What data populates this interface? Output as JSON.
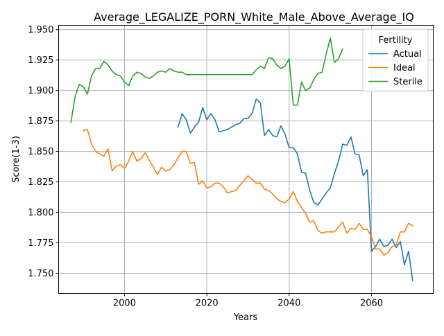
{
  "chart_data": {
    "type": "line",
    "title": "Average_LEGALIZE_PORN_White_Male_Above_Average_IQ",
    "xlabel": "Years",
    "ylabel": "Score(1-3)",
    "xlim": [
      1984,
      2075
    ],
    "ylim": [
      1.7335,
      1.9535
    ],
    "xticks": [
      2000,
      2020,
      2040,
      2060
    ],
    "yticks": [
      1.75,
      1.775,
      1.8,
      1.825,
      1.85,
      1.875,
      1.9,
      1.925,
      1.95
    ],
    "grid": true,
    "legend": {
      "title": "Fertility",
      "placement": "top-right"
    },
    "series": [
      {
        "name": "Actual",
        "color": "#1f77b4",
        "x": [
          2013,
          2014,
          2015,
          2016,
          2017,
          2018,
          2019,
          2020,
          2021,
          2022,
          2023,
          2024,
          2025,
          2026,
          2027,
          2028,
          2029,
          2030,
          2031,
          2032,
          2033,
          2034,
          2035,
          2036,
          2037,
          2038,
          2039,
          2040,
          2041,
          2042,
          2043,
          2044,
          2045,
          2046,
          2047,
          2048,
          2049,
          2050,
          2051,
          2052,
          2053,
          2054,
          2055,
          2056,
          2057,
          2058,
          2059,
          2060,
          2061,
          2062,
          2063,
          2064,
          2065,
          2066,
          2067,
          2068,
          2069,
          2070
        ],
        "values": [
          1.87,
          1.881,
          1.876,
          1.865,
          1.87,
          1.874,
          1.886,
          1.876,
          1.881,
          1.876,
          1.866,
          1.867,
          1.868,
          1.87,
          1.872,
          1.873,
          1.877,
          1.877,
          1.881,
          1.893,
          1.89,
          1.863,
          1.868,
          1.863,
          1.862,
          1.871,
          1.864,
          1.853,
          1.853,
          1.848,
          1.833,
          1.832,
          1.818,
          1.808,
          1.806,
          1.811,
          1.816,
          1.82,
          1.832,
          1.842,
          1.856,
          1.855,
          1.862,
          1.848,
          1.847,
          1.83,
          1.835,
          1.768,
          1.772,
          1.778,
          1.772,
          1.773,
          1.778,
          1.771,
          1.776,
          1.757,
          1.768,
          1.744
        ]
      },
      {
        "name": "Ideal",
        "color": "#ff7f0e",
        "x": [
          1990,
          1991,
          1992,
          1993,
          1994,
          1995,
          1996,
          1997,
          1998,
          1999,
          2000,
          2001,
          2002,
          2003,
          2004,
          2005,
          2006,
          2007,
          2008,
          2009,
          2010,
          2011,
          2012,
          2013,
          2014,
          2015,
          2016,
          2017,
          2018,
          2019,
          2020,
          2021,
          2022,
          2023,
          2024,
          2025,
          2026,
          2027,
          2028,
          2029,
          2030,
          2031,
          2032,
          2033,
          2034,
          2035,
          2036,
          2037,
          2038,
          2039,
          2040,
          2041,
          2042,
          2043,
          2044,
          2045,
          2046,
          2047,
          2048,
          2049,
          2050,
          2051,
          2052,
          2053,
          2054,
          2055,
          2056,
          2057,
          2058,
          2059,
          2060,
          2061,
          2062,
          2063,
          2064,
          2065,
          2066,
          2067,
          2068,
          2069,
          2070
        ],
        "values": [
          1.867,
          1.868,
          1.856,
          1.85,
          1.848,
          1.846,
          1.852,
          1.834,
          1.838,
          1.839,
          1.836,
          1.842,
          1.85,
          1.842,
          1.844,
          1.849,
          1.843,
          1.837,
          1.831,
          1.837,
          1.834,
          1.835,
          1.839,
          1.845,
          1.85,
          1.85,
          1.84,
          1.841,
          1.823,
          1.826,
          1.82,
          1.821,
          1.824,
          1.824,
          1.821,
          1.816,
          1.817,
          1.818,
          1.822,
          1.826,
          1.83,
          1.827,
          1.824,
          1.824,
          1.819,
          1.818,
          1.815,
          1.811,
          1.809,
          1.808,
          1.811,
          1.817,
          1.809,
          1.804,
          1.799,
          1.792,
          1.793,
          1.785,
          1.783,
          1.784,
          1.784,
          1.784,
          1.788,
          1.792,
          1.783,
          1.787,
          1.786,
          1.791,
          1.786,
          1.786,
          1.78,
          1.77,
          1.77,
          1.765,
          1.767,
          1.772,
          1.773,
          1.784,
          1.784,
          1.791,
          1.789
        ]
      },
      {
        "name": "Sterile",
        "color": "#2ca02c",
        "x": [
          1987,
          1988,
          1989,
          1990,
          1991,
          1992,
          1993,
          1994,
          1995,
          1996,
          1997,
          1998,
          1999,
          2000,
          2001,
          2002,
          2003,
          2004,
          2005,
          2006,
          2007,
          2008,
          2009,
          2010,
          2011,
          2012,
          2013,
          2014,
          2015,
          2016,
          2017,
          2018,
          2019,
          2020,
          2021,
          2022,
          2023,
          2024,
          2025,
          2026,
          2027,
          2028,
          2029,
          2030,
          2031,
          2032,
          2033,
          2034,
          2035,
          2036,
          2037,
          2038,
          2039,
          2040,
          2041,
          2042,
          2043,
          2044,
          2045,
          2046,
          2047,
          2048,
          2049,
          2050,
          2051,
          2052,
          2053
        ],
        "values": [
          1.874,
          1.895,
          1.905,
          1.903,
          1.897,
          1.912,
          1.918,
          1.918,
          1.924,
          1.921,
          1.916,
          1.913,
          1.912,
          1.907,
          1.904,
          1.912,
          1.915,
          1.914,
          1.911,
          1.91,
          1.912,
          1.915,
          1.916,
          1.915,
          1.918,
          1.916,
          1.915,
          1.915,
          1.913,
          1.913,
          1.913,
          1.913,
          1.913,
          1.913,
          1.913,
          1.913,
          1.913,
          1.913,
          1.913,
          1.913,
          1.913,
          1.913,
          1.913,
          1.913,
          1.913,
          1.917,
          1.92,
          1.918,
          1.927,
          1.926,
          1.921,
          1.918,
          1.92,
          1.926,
          1.888,
          1.888,
          1.907,
          1.9,
          1.902,
          1.909,
          1.914,
          1.915,
          1.93,
          1.943,
          1.923,
          1.926,
          1.934
        ]
      }
    ]
  }
}
